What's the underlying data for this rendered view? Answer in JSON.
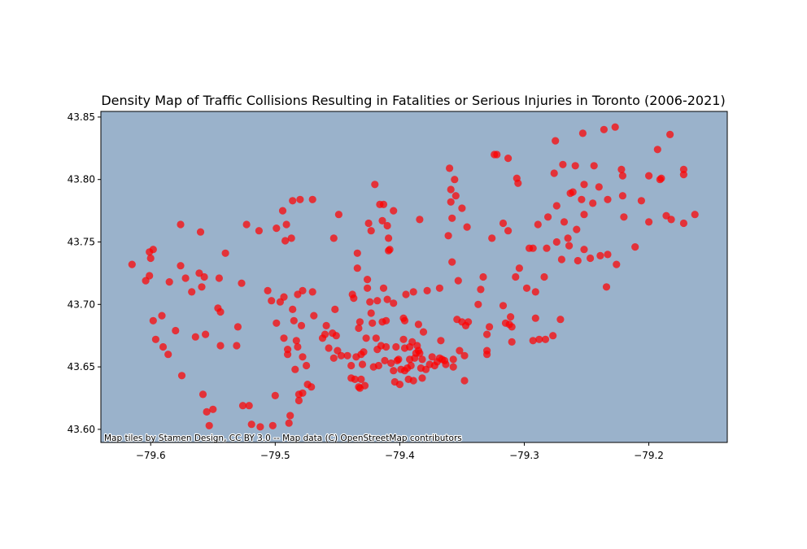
{
  "chart_data": {
    "type": "scatter",
    "title": "Density Map of Traffic Collisions Resulting in Fatalities or Serious Injuries in Toronto (2006-2021)",
    "xlabel": "",
    "ylabel": "",
    "xlim": [
      -79.64,
      -79.137
    ],
    "ylim": [
      43.5895,
      43.8545
    ],
    "xticks": [
      -79.6,
      -79.5,
      -79.4,
      -79.3,
      -79.2
    ],
    "xtick_labels": [
      "−79.6",
      "−79.5",
      "−79.4",
      "−79.3",
      "−79.2"
    ],
    "yticks": [
      43.6,
      43.65,
      43.7,
      43.75,
      43.8,
      43.85
    ],
    "ytick_labels": [
      "43.60",
      "43.65",
      "43.70",
      "43.75",
      "43.80",
      "43.85"
    ],
    "grid": false,
    "background_color": "#9ab2cb",
    "point_color": "#ff0000",
    "attribution": "Map tiles by Stamen Design, CC BY 3.0 -- Map data (C) OpenStreetMap contributors",
    "points": [
      [
        -79.615,
        43.732
      ],
      [
        -79.601,
        43.742
      ],
      [
        -79.598,
        43.744
      ],
      [
        -79.604,
        43.719
      ],
      [
        -79.601,
        43.723
      ],
      [
        -79.6,
        43.737
      ],
      [
        -79.598,
        43.687
      ],
      [
        -79.596,
        43.672
      ],
      [
        -79.591,
        43.691
      ],
      [
        -79.59,
        43.666
      ],
      [
        -79.586,
        43.66
      ],
      [
        -79.585,
        43.718
      ],
      [
        -79.58,
        43.679
      ],
      [
        -79.576,
        43.764
      ],
      [
        -79.576,
        43.731
      ],
      [
        -79.575,
        43.643
      ],
      [
        -79.572,
        43.721
      ],
      [
        -79.567,
        43.71
      ],
      [
        -79.564,
        43.674
      ],
      [
        -79.561,
        43.725
      ],
      [
        -79.56,
        43.758
      ],
      [
        -79.559,
        43.714
      ],
      [
        -79.558,
        43.628
      ],
      [
        -79.557,
        43.722
      ],
      [
        -79.556,
        43.676
      ],
      [
        -79.555,
        43.614
      ],
      [
        -79.553,
        43.603
      ],
      [
        -79.55,
        43.616
      ],
      [
        -79.546,
        43.697
      ],
      [
        -79.545,
        43.721
      ],
      [
        -79.544,
        43.694
      ],
      [
        -79.544,
        43.667
      ],
      [
        -79.54,
        43.741
      ],
      [
        -79.53,
        43.682
      ],
      [
        -79.531,
        43.667
      ],
      [
        -79.527,
        43.717
      ],
      [
        -79.526,
        43.619
      ],
      [
        -79.523,
        43.764
      ],
      [
        -79.521,
        43.619
      ],
      [
        -79.519,
        43.604
      ],
      [
        -79.513,
        43.759
      ],
      [
        -79.512,
        43.602
      ],
      [
        -79.506,
        43.711
      ],
      [
        -79.503,
        43.703
      ],
      [
        -79.502,
        43.603
      ],
      [
        -79.5,
        43.627
      ],
      [
        -79.499,
        43.761
      ],
      [
        -79.499,
        43.685
      ],
      [
        -79.496,
        43.702
      ],
      [
        -79.494,
        43.775
      ],
      [
        -79.493,
        43.706
      ],
      [
        -79.493,
        43.673
      ],
      [
        -79.492,
        43.751
      ],
      [
        -79.491,
        43.764
      ],
      [
        -79.49,
        43.664
      ],
      [
        -79.49,
        43.66
      ],
      [
        -79.489,
        43.605
      ],
      [
        -79.488,
        43.611
      ],
      [
        -79.487,
        43.753
      ],
      [
        -79.486,
        43.783
      ],
      [
        -79.486,
        43.696
      ],
      [
        -79.485,
        43.687
      ],
      [
        -79.484,
        43.648
      ],
      [
        -79.483,
        43.671
      ],
      [
        -79.482,
        43.666
      ],
      [
        -79.482,
        43.708
      ],
      [
        -79.481,
        43.628
      ],
      [
        -79.481,
        43.623
      ],
      [
        -79.48,
        43.784
      ],
      [
        -79.479,
        43.683
      ],
      [
        -79.478,
        43.711
      ],
      [
        -79.478,
        43.629
      ],
      [
        -79.478,
        43.658
      ],
      [
        -79.475,
        43.651
      ],
      [
        -79.474,
        43.636
      ],
      [
        -79.471,
        43.634
      ],
      [
        -79.47,
        43.71
      ],
      [
        -79.47,
        43.784
      ],
      [
        -79.469,
        43.691
      ],
      [
        -79.462,
        43.673
      ],
      [
        -79.46,
        43.676
      ],
      [
        -79.459,
        43.683
      ],
      [
        -79.457,
        43.665
      ],
      [
        -79.454,
        43.677
      ],
      [
        -79.453,
        43.753
      ],
      [
        -79.453,
        43.657
      ],
      [
        -79.452,
        43.696
      ],
      [
        -79.451,
        43.675
      ],
      [
        -79.45,
        43.663
      ],
      [
        -79.449,
        43.772
      ],
      [
        -79.447,
        43.659
      ],
      [
        -79.442,
        43.659
      ],
      [
        -79.439,
        43.651
      ],
      [
        -79.439,
        43.641
      ],
      [
        -79.438,
        43.708
      ],
      [
        -79.437,
        43.705
      ],
      [
        -79.436,
        43.64
      ],
      [
        -79.435,
        43.658
      ],
      [
        -79.434,
        43.741
      ],
      [
        -79.434,
        43.729
      ],
      [
        -79.433,
        43.634
      ],
      [
        -79.433,
        43.681
      ],
      [
        -79.432,
        43.633
      ],
      [
        -79.432,
        43.686
      ],
      [
        -79.431,
        43.64
      ],
      [
        -79.431,
        43.66
      ],
      [
        -79.43,
        43.652
      ],
      [
        -79.429,
        43.662
      ],
      [
        -79.428,
        43.635
      ],
      [
        -79.427,
        43.673
      ],
      [
        -79.426,
        43.72
      ],
      [
        -79.426,
        43.713
      ],
      [
        -79.425,
        43.765
      ],
      [
        -79.424,
        43.702
      ],
      [
        -79.423,
        43.759
      ],
      [
        -79.423,
        43.693
      ],
      [
        -79.422,
        43.685
      ],
      [
        -79.421,
        43.65
      ],
      [
        -79.42,
        43.796
      ],
      [
        -79.419,
        43.673
      ],
      [
        -79.418,
        43.703
      ],
      [
        -79.418,
        43.664
      ],
      [
        -79.417,
        43.651
      ],
      [
        -79.416,
        43.78
      ],
      [
        -79.415,
        43.667
      ],
      [
        -79.414,
        43.767
      ],
      [
        -79.414,
        43.686
      ],
      [
        -79.413,
        43.78
      ],
      [
        -79.413,
        43.713
      ],
      [
        -79.412,
        43.655
      ],
      [
        -79.411,
        43.666
      ],
      [
        -79.411,
        43.687
      ],
      [
        -79.41,
        43.704
      ],
      [
        -79.41,
        43.763
      ],
      [
        -79.409,
        43.753
      ],
      [
        -79.409,
        43.743
      ],
      [
        -79.408,
        43.744
      ],
      [
        -79.407,
        43.653
      ],
      [
        -79.405,
        43.775
      ],
      [
        -79.405,
        43.701
      ],
      [
        -79.405,
        43.647
      ],
      [
        -79.404,
        43.638
      ],
      [
        -79.403,
        43.666
      ],
      [
        -79.402,
        43.655
      ],
      [
        -79.401,
        43.656
      ],
      [
        -79.4,
        43.636
      ],
      [
        -79.399,
        43.648
      ],
      [
        -79.397,
        43.689
      ],
      [
        -79.397,
        43.672
      ],
      [
        -79.396,
        43.665
      ],
      [
        -79.396,
        43.647
      ],
      [
        -79.396,
        43.687
      ],
      [
        -79.395,
        43.708
      ],
      [
        -79.394,
        43.649
      ],
      [
        -79.393,
        43.64
      ],
      [
        -79.392,
        43.666
      ],
      [
        -79.392,
        43.656
      ],
      [
        -79.391,
        43.651
      ],
      [
        -79.39,
        43.67
      ],
      [
        -79.389,
        43.71
      ],
      [
        -79.389,
        43.639
      ],
      [
        -79.388,
        43.657
      ],
      [
        -79.387,
        43.661
      ],
      [
        -79.386,
        43.667
      ],
      [
        -79.385,
        43.663
      ],
      [
        -79.385,
        43.684
      ],
      [
        -79.384,
        43.768
      ],
      [
        -79.384,
        43.661
      ],
      [
        -79.383,
        43.649
      ],
      [
        -79.382,
        43.656
      ],
      [
        -79.382,
        43.641
      ],
      [
        -79.381,
        43.678
      ],
      [
        -79.379,
        43.648
      ],
      [
        -79.378,
        43.711
      ],
      [
        -79.376,
        43.652
      ],
      [
        -79.374,
        43.658
      ],
      [
        -79.372,
        43.651
      ],
      [
        -79.37,
        43.654
      ],
      [
        -79.368,
        43.657
      ],
      [
        -79.368,
        43.713
      ],
      [
        -79.367,
        43.671
      ],
      [
        -79.366,
        43.656
      ],
      [
        -79.364,
        43.655
      ],
      [
        -79.363,
        43.652
      ],
      [
        -79.361,
        43.755
      ],
      [
        -79.36,
        43.809
      ],
      [
        -79.359,
        43.792
      ],
      [
        -79.359,
        43.782
      ],
      [
        -79.358,
        43.769
      ],
      [
        -79.358,
        43.734
      ],
      [
        -79.357,
        43.656
      ],
      [
        -79.357,
        43.65
      ],
      [
        -79.356,
        43.8
      ],
      [
        -79.355,
        43.787
      ],
      [
        -79.354,
        43.688
      ],
      [
        -79.353,
        43.719
      ],
      [
        -79.352,
        43.663
      ],
      [
        -79.35,
        43.777
      ],
      [
        -79.35,
        43.686
      ],
      [
        -79.348,
        43.659
      ],
      [
        -79.348,
        43.639
      ],
      [
        -79.347,
        43.683
      ],
      [
        -79.346,
        43.762
      ],
      [
        -79.345,
        43.686
      ],
      [
        -79.337,
        43.7
      ],
      [
        -79.335,
        43.712
      ],
      [
        -79.333,
        43.722
      ],
      [
        -79.33,
        43.676
      ],
      [
        -79.33,
        43.663
      ],
      [
        -79.33,
        43.66
      ],
      [
        -79.328,
        43.682
      ],
      [
        -79.326,
        43.753
      ],
      [
        -79.324,
        43.82
      ],
      [
        -79.322,
        43.82
      ],
      [
        -79.317,
        43.699
      ],
      [
        -79.317,
        43.765
      ],
      [
        -79.315,
        43.685
      ],
      [
        -79.313,
        43.817
      ],
      [
        -79.313,
        43.759
      ],
      [
        -79.312,
        43.684
      ],
      [
        -79.311,
        43.69
      ],
      [
        -79.31,
        43.682
      ],
      [
        -79.31,
        43.67
      ],
      [
        -79.307,
        43.722
      ],
      [
        -79.306,
        43.801
      ],
      [
        -79.305,
        43.797
      ],
      [
        -79.304,
        43.729
      ],
      [
        -79.298,
        43.713
      ],
      [
        -79.296,
        43.745
      ],
      [
        -79.293,
        43.745
      ],
      [
        -79.293,
        43.671
      ],
      [
        -79.291,
        43.689
      ],
      [
        -79.291,
        43.71
      ],
      [
        -79.289,
        43.764
      ],
      [
        -79.288,
        43.672
      ],
      [
        -79.284,
        43.722
      ],
      [
        -79.283,
        43.672
      ],
      [
        -79.282,
        43.745
      ],
      [
        -79.281,
        43.77
      ],
      [
        -79.277,
        43.675
      ],
      [
        -79.276,
        43.805
      ],
      [
        -79.275,
        43.831
      ],
      [
        -79.274,
        43.779
      ],
      [
        -79.274,
        43.75
      ],
      [
        -79.271,
        43.688
      ],
      [
        -79.27,
        43.736
      ],
      [
        -79.269,
        43.812
      ],
      [
        -79.268,
        43.766
      ],
      [
        -79.265,
        43.753
      ],
      [
        -79.264,
        43.747
      ],
      [
        -79.263,
        43.789
      ],
      [
        -79.261,
        43.79
      ],
      [
        -79.259,
        43.811
      ],
      [
        -79.258,
        43.76
      ],
      [
        -79.257,
        43.735
      ],
      [
        -79.254,
        43.784
      ],
      [
        -79.253,
        43.837
      ],
      [
        -79.252,
        43.772
      ],
      [
        -79.252,
        43.796
      ],
      [
        -79.252,
        43.744
      ],
      [
        -79.247,
        43.737
      ],
      [
        -79.245,
        43.781
      ],
      [
        -79.244,
        43.811
      ],
      [
        -79.24,
        43.794
      ],
      [
        -79.239,
        43.739
      ],
      [
        -79.236,
        43.84
      ],
      [
        -79.234,
        43.714
      ],
      [
        -79.233,
        43.784
      ],
      [
        -79.233,
        43.74
      ],
      [
        -79.227,
        43.842
      ],
      [
        -79.226,
        43.732
      ],
      [
        -79.222,
        43.808
      ],
      [
        -79.221,
        43.803
      ],
      [
        -79.221,
        43.787
      ],
      [
        -79.22,
        43.77
      ],
      [
        -79.211,
        43.746
      ],
      [
        -79.206,
        43.783
      ],
      [
        -79.2,
        43.803
      ],
      [
        -79.2,
        43.766
      ],
      [
        -79.193,
        43.824
      ],
      [
        -79.191,
        43.8
      ],
      [
        -79.19,
        43.801
      ],
      [
        -79.186,
        43.771
      ],
      [
        -79.183,
        43.836
      ],
      [
        -79.182,
        43.768
      ],
      [
        -79.172,
        43.808
      ],
      [
        -79.172,
        43.804
      ],
      [
        -79.172,
        43.765
      ],
      [
        -79.163,
        43.772
      ]
    ]
  }
}
